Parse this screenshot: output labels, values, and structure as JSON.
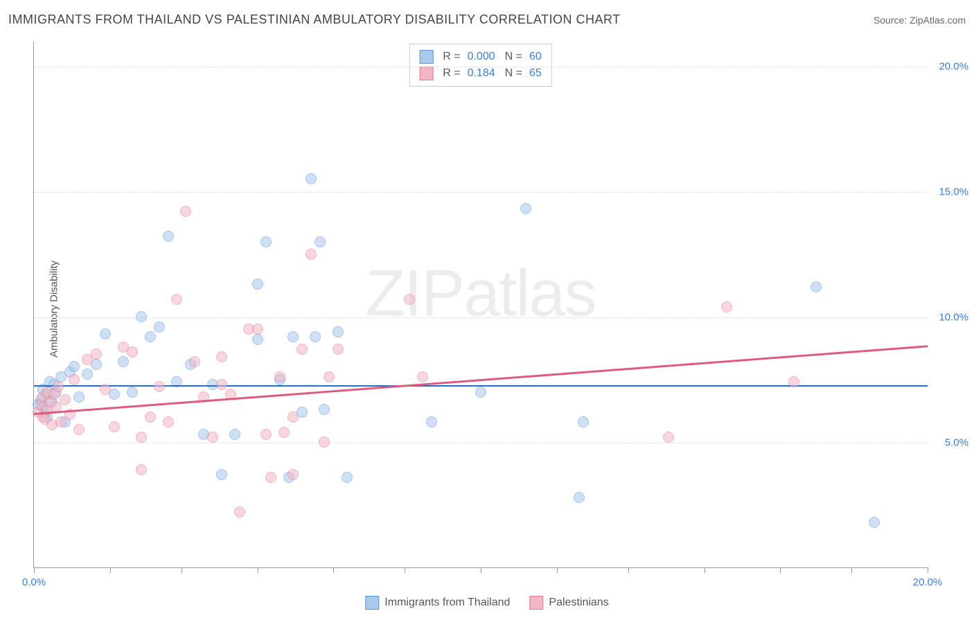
{
  "title": "IMMIGRANTS FROM THAILAND VS PALESTINIAN AMBULATORY DISABILITY CORRELATION CHART",
  "source_label": "Source: ",
  "source_name": "ZipAtlas.com",
  "ylabel": "Ambulatory Disability",
  "watermark": "ZIPatlas",
  "chart": {
    "type": "scatter",
    "xlim": [
      0,
      20
    ],
    "ylim": [
      0,
      21
    ],
    "xticks": [
      0,
      1.7,
      3.3,
      5.0,
      6.7,
      8.3,
      10.0,
      11.7,
      13.3,
      15.0,
      16.7,
      18.3,
      20.0
    ],
    "xtick_labels": {
      "0": "0.0%",
      "20": "20.0%"
    },
    "yticks": [
      5,
      10,
      15,
      20
    ],
    "ytick_labels": [
      "5.0%",
      "10.0%",
      "15.0%",
      "20.0%"
    ],
    "grid_color": "#dddddd",
    "background_color": "#ffffff",
    "axis_color": "#999999",
    "tick_label_color": "#3b7dd8",
    "series": [
      {
        "name": "Immigrants from Thailand",
        "fill": "#a8c8ec",
        "stroke": "#5a96d6",
        "fill_opacity": 0.55,
        "marker_radius": 8,
        "R": "0.000",
        "N": "60",
        "trend": {
          "y_at_x0": 7.3,
          "y_at_xmax": 7.3,
          "color": "#1f6fd0",
          "width": 2.5
        },
        "points": [
          [
            0.1,
            6.5
          ],
          [
            0.15,
            6.7
          ],
          [
            0.2,
            6.4
          ],
          [
            0.2,
            7.1
          ],
          [
            0.25,
            6.2
          ],
          [
            0.3,
            6.9
          ],
          [
            0.3,
            6.0
          ],
          [
            0.35,
            7.4
          ],
          [
            0.4,
            6.6
          ],
          [
            0.45,
            7.3
          ],
          [
            0.5,
            7.0
          ],
          [
            0.6,
            7.6
          ],
          [
            0.7,
            5.8
          ],
          [
            0.8,
            7.8
          ],
          [
            0.9,
            8.0
          ],
          [
            1.0,
            6.8
          ],
          [
            1.2,
            7.7
          ],
          [
            1.4,
            8.1
          ],
          [
            1.6,
            9.3
          ],
          [
            1.8,
            6.9
          ],
          [
            2.0,
            8.2
          ],
          [
            2.2,
            7.0
          ],
          [
            2.4,
            10.0
          ],
          [
            2.6,
            9.2
          ],
          [
            2.8,
            9.6
          ],
          [
            3.0,
            13.2
          ],
          [
            3.2,
            7.4
          ],
          [
            3.5,
            8.1
          ],
          [
            3.8,
            5.3
          ],
          [
            4.0,
            7.3
          ],
          [
            4.2,
            3.7
          ],
          [
            4.5,
            5.3
          ],
          [
            5.0,
            9.1
          ],
          [
            5.0,
            11.3
          ],
          [
            5.2,
            13.0
          ],
          [
            5.5,
            7.5
          ],
          [
            5.7,
            3.6
          ],
          [
            5.8,
            9.2
          ],
          [
            6.0,
            6.2
          ],
          [
            6.2,
            15.5
          ],
          [
            6.3,
            9.2
          ],
          [
            6.4,
            13.0
          ],
          [
            6.5,
            6.3
          ],
          [
            6.8,
            9.4
          ],
          [
            7.0,
            3.6
          ],
          [
            8.9,
            5.8
          ],
          [
            10.0,
            7.0
          ],
          [
            11.0,
            14.3
          ],
          [
            12.3,
            5.8
          ],
          [
            12.2,
            2.8
          ],
          [
            17.5,
            11.2
          ],
          [
            18.8,
            1.8
          ]
        ]
      },
      {
        "name": "Palestinians",
        "fill": "#f2b6c4",
        "stroke": "#e07a94",
        "fill_opacity": 0.55,
        "marker_radius": 8,
        "R": "0.184",
        "N": "65",
        "trend": {
          "y_at_x0": 6.2,
          "y_at_xmax": 8.9,
          "color": "#e05a7e",
          "width": 2.5
        },
        "points": [
          [
            0.1,
            6.2
          ],
          [
            0.15,
            6.5
          ],
          [
            0.2,
            6.0
          ],
          [
            0.2,
            6.8
          ],
          [
            0.25,
            5.9
          ],
          [
            0.3,
            7.0
          ],
          [
            0.3,
            6.3
          ],
          [
            0.35,
            6.6
          ],
          [
            0.4,
            5.7
          ],
          [
            0.45,
            6.9
          ],
          [
            0.5,
            6.4
          ],
          [
            0.55,
            7.2
          ],
          [
            0.6,
            5.8
          ],
          [
            0.7,
            6.7
          ],
          [
            0.8,
            6.1
          ],
          [
            0.9,
            7.5
          ],
          [
            1.0,
            5.5
          ],
          [
            1.2,
            8.3
          ],
          [
            1.4,
            8.5
          ],
          [
            1.6,
            7.1
          ],
          [
            1.8,
            5.6
          ],
          [
            2.0,
            8.8
          ],
          [
            2.2,
            8.6
          ],
          [
            2.4,
            5.2
          ],
          [
            2.4,
            3.9
          ],
          [
            2.6,
            6.0
          ],
          [
            2.8,
            7.2
          ],
          [
            3.0,
            5.8
          ],
          [
            3.2,
            10.7
          ],
          [
            3.4,
            14.2
          ],
          [
            3.6,
            8.2
          ],
          [
            3.8,
            6.8
          ],
          [
            4.0,
            5.2
          ],
          [
            4.2,
            8.4
          ],
          [
            4.2,
            7.3
          ],
          [
            4.4,
            6.9
          ],
          [
            4.6,
            2.2
          ],
          [
            4.8,
            9.5
          ],
          [
            5.0,
            9.5
          ],
          [
            5.2,
            5.3
          ],
          [
            5.3,
            3.6
          ],
          [
            5.5,
            7.6
          ],
          [
            5.6,
            5.4
          ],
          [
            5.8,
            6.0
          ],
          [
            5.8,
            3.7
          ],
          [
            6.0,
            8.7
          ],
          [
            6.2,
            12.5
          ],
          [
            6.5,
            5.0
          ],
          [
            6.6,
            7.6
          ],
          [
            6.8,
            8.7
          ],
          [
            8.4,
            10.7
          ],
          [
            8.7,
            7.6
          ],
          [
            14.2,
            5.2
          ],
          [
            15.5,
            10.4
          ],
          [
            17.0,
            7.4
          ]
        ]
      }
    ]
  },
  "top_legend": {
    "R_label": "R =",
    "N_label": "N ="
  },
  "bottom_legend": {
    "items": [
      "Immigrants from Thailand",
      "Palestinians"
    ]
  }
}
